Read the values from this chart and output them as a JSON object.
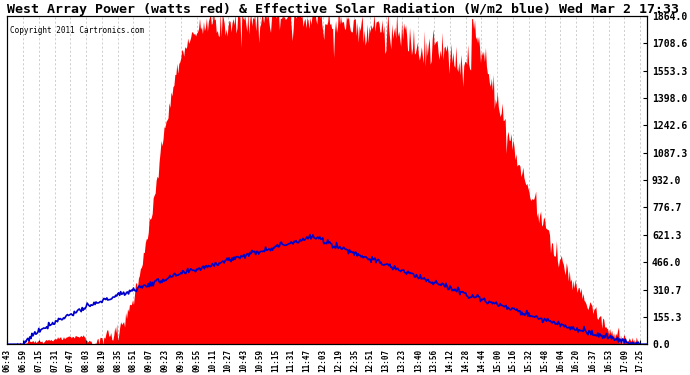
{
  "title": "West Array Power (watts red) & Effective Solar Radiation (W/m2 blue) Wed Mar 2 17:33",
  "copyright": "Copyright 2011 Cartronics.com",
  "ylabel_right": [
    "0.0",
    "155.3",
    "310.7",
    "466.0",
    "621.3",
    "776.7",
    "932.0",
    "1087.3",
    "1242.6",
    "1398.0",
    "1553.3",
    "1708.6",
    "1864.0"
  ],
  "ymax": 1864.0,
  "ymin": 0.0,
  "background_color": "#ffffff",
  "plot_bg_color": "#ffffff",
  "grid_color": "#bbbbbb",
  "red_color": "#ff0000",
  "blue_color": "#0000cc",
  "title_fontsize": 9.5,
  "xtick_labels": [
    "06:43",
    "06:59",
    "07:15",
    "07:31",
    "07:47",
    "08:03",
    "08:19",
    "08:35",
    "08:51",
    "09:07",
    "09:23",
    "09:39",
    "09:55",
    "10:11",
    "10:27",
    "10:43",
    "10:59",
    "11:15",
    "11:31",
    "11:47",
    "12:03",
    "12:19",
    "12:35",
    "12:51",
    "13:07",
    "13:23",
    "13:40",
    "13:56",
    "14:12",
    "14:28",
    "14:44",
    "15:00",
    "15:16",
    "15:32",
    "15:48",
    "16:04",
    "16:20",
    "16:37",
    "16:53",
    "17:09",
    "17:25"
  ]
}
